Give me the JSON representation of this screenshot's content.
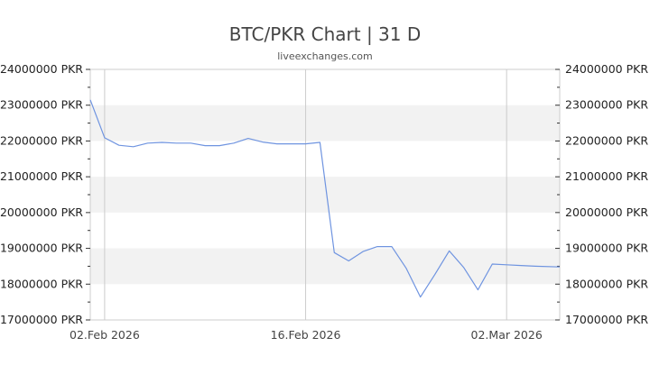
{
  "header": {
    "title": "BTC/PKR Chart | 31 D",
    "subtitle": "liveexchanges.com"
  },
  "colors": {
    "line": "#6f94e0",
    "band": "#f2f2f2",
    "grid": "#cccccc",
    "axis": "#cccccc"
  },
  "chart_data": {
    "type": "line",
    "title": "BTC/PKR Chart | 31 D",
    "subtitle": "liveexchanges.com",
    "xlabel": "",
    "ylabel": "",
    "ylim": [
      17000000,
      24000000
    ],
    "y_ticks": [
      17000000,
      18000000,
      19000000,
      20000000,
      21000000,
      22000000,
      23000000,
      24000000
    ],
    "y_tick_labels": [
      "17000000 PKR",
      "18000000 PKR",
      "19000000 PKR",
      "20000000 PKR",
      "21000000 PKR",
      "22000000 PKR",
      "23000000 PKR",
      "24000000 PKR"
    ],
    "x_tick_labels": [
      "02.Feb 2026",
      "16.Feb 2026",
      "02.Mar 2026"
    ],
    "x_tick_index": [
      1,
      15,
      29
    ],
    "grid": true,
    "legend": "none",
    "series": [
      {
        "name": "BTC/PKR",
        "x": [
          "01.Feb 2026",
          "02.Feb 2026",
          "03.Feb 2026",
          "04.Feb 2026",
          "05.Feb 2026",
          "06.Feb 2026",
          "07.Feb 2026",
          "08.Feb 2026",
          "09.Feb 2026",
          "10.Feb 2026",
          "11.Feb 2026",
          "12.Feb 2026",
          "13.Feb 2026",
          "14.Feb 2026",
          "15.Feb 2026",
          "16.Feb 2026",
          "17.Feb 2026",
          "18.Feb 2026",
          "19.Feb 2026",
          "20.Feb 2026",
          "21.Feb 2026",
          "22.Feb 2026",
          "23.Feb 2026",
          "24.Feb 2026",
          "25.Feb 2026",
          "26.Feb 2026",
          "27.Feb 2026",
          "28.Feb 2026",
          "01.Mar 2026",
          "02.Mar 2026",
          "03.Mar 2026",
          "04.Mar 2026",
          "05.Mar 2026"
        ],
        "values": [
          23150000,
          22090000,
          21880000,
          21840000,
          21940000,
          21960000,
          21940000,
          21940000,
          21870000,
          21870000,
          21940000,
          22070000,
          21970000,
          21920000,
          21920000,
          21920000,
          21960000,
          18880000,
          18650000,
          18910000,
          19050000,
          19050000,
          18450000,
          17640000,
          18270000,
          18930000,
          18470000,
          17840000,
          18560000,
          18540000,
          18520000,
          18500000,
          18480000
        ]
      }
    ]
  }
}
